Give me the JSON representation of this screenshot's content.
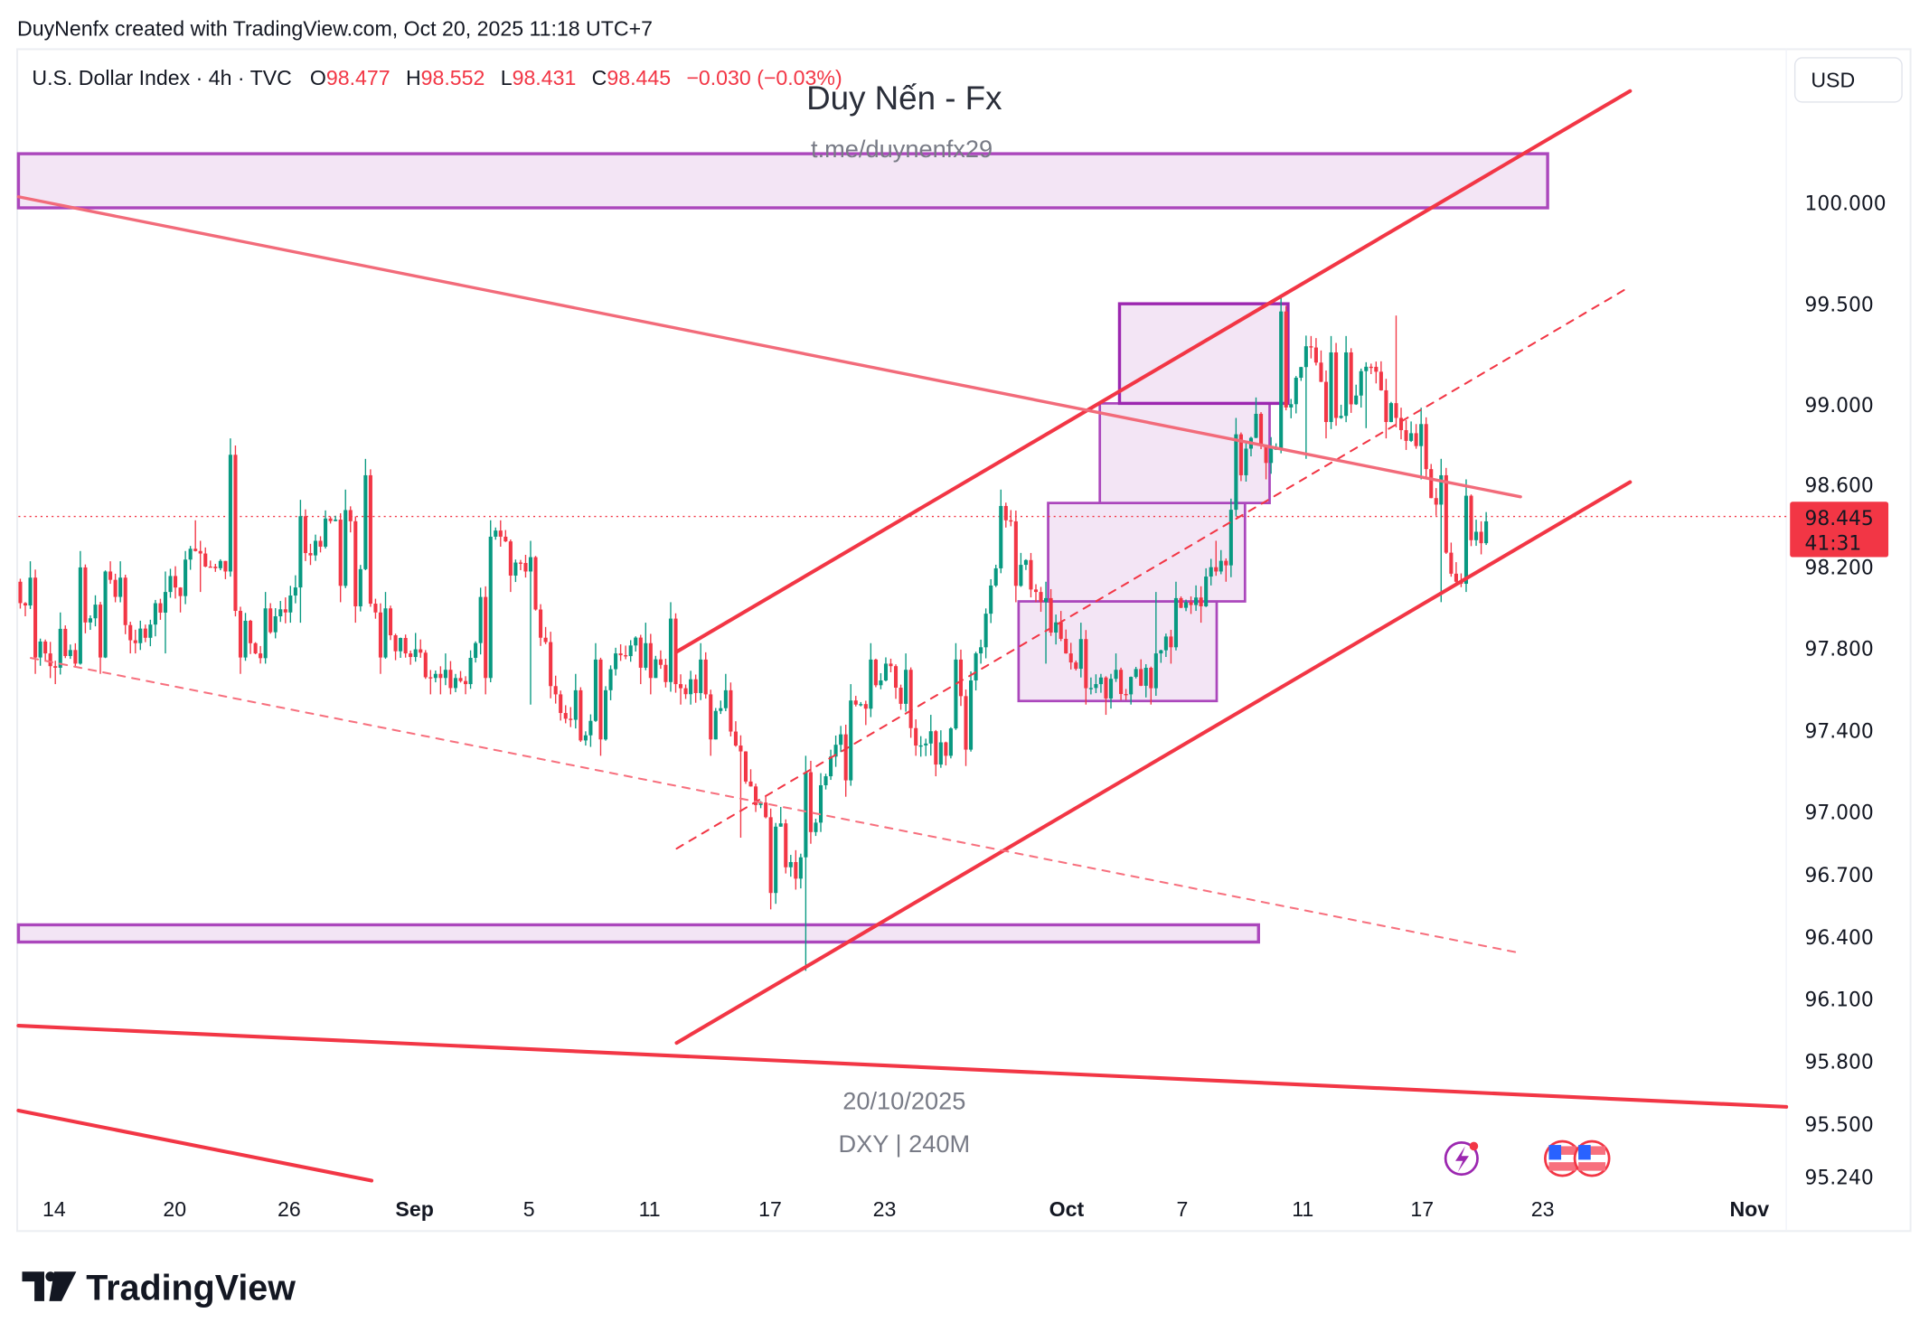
{
  "credit": "DuyNenfx created with TradingView.com, Oct 20, 2025 11:18 UTC+7",
  "legend": {
    "symbol": "U.S. Dollar Index · 4h · TVC",
    "o_label": "O",
    "o": "98.477",
    "h_label": "H",
    "h": "98.552",
    "l_label": "L",
    "l": "98.431",
    "c_label": "C",
    "c": "98.445",
    "change": "−0.030 (−0.03%)"
  },
  "watermark": {
    "title": "Duy Nến - Fx",
    "link": "t.me/duynenfx29",
    "date": "20/10/2025",
    "ticker": "DXY | 240M"
  },
  "currency_button": "USD",
  "last_price": {
    "value": "98.445",
    "countdown": "41:31"
  },
  "footer_logo": "TradingView",
  "colors": {
    "up": "#089981",
    "down": "#f23645",
    "zone_fill": "#f3e5f5",
    "zone_stroke": "#ab47bc",
    "trendline": "#f23645"
  },
  "icons": [
    "lightning-event-icon",
    "us-flag-icon",
    "us-flag-icon"
  ],
  "chart_data": {
    "type": "candlestick",
    "timeframe": "4h",
    "y_axis": {
      "ticks": [
        "100.000",
        "99.500",
        "99.000",
        "98.600",
        "98.200",
        "97.800",
        "97.400",
        "97.000",
        "96.700",
        "96.400",
        "96.100",
        "95.800",
        "95.500",
        "95.240"
      ],
      "range": [
        95.24,
        100.5
      ]
    },
    "x_axis": {
      "ticks": [
        "14",
        "20",
        "26",
        "Sep",
        "5",
        "11",
        "17",
        "23",
        "Oct",
        "7",
        "11",
        "17",
        "23",
        "Nov"
      ]
    },
    "daily_ohlc": [
      [
        "2025-08-13",
        98.15,
        98.25,
        97.7,
        97.8
      ],
      [
        "2025-08-14",
        97.8,
        98.0,
        97.65,
        97.75
      ],
      [
        "2025-08-15",
        97.75,
        98.3,
        97.7,
        98.2
      ],
      [
        "2025-08-18",
        98.2,
        98.25,
        97.8,
        97.85
      ],
      [
        "2025-08-19",
        97.85,
        98.2,
        97.8,
        98.1
      ],
      [
        "2025-08-20",
        98.1,
        98.45,
        98.0,
        98.3
      ],
      [
        "2025-08-21",
        98.3,
        98.35,
        98.1,
        98.2
      ],
      [
        "2025-08-22",
        98.2,
        98.85,
        97.7,
        97.8
      ],
      [
        "2025-08-25",
        97.8,
        98.1,
        97.75,
        98.0
      ],
      [
        "2025-08-26",
        98.0,
        98.55,
        97.95,
        98.35
      ],
      [
        "2025-08-27",
        98.35,
        98.6,
        98.05,
        98.5
      ],
      [
        "2025-08-28",
        98.5,
        98.75,
        97.95,
        98.0
      ],
      [
        "2025-08-29",
        98.0,
        98.1,
        97.7,
        97.8
      ],
      [
        "2025-09-01",
        97.8,
        97.9,
        97.6,
        97.7
      ],
      [
        "2025-09-02",
        97.7,
        97.8,
        97.6,
        97.65
      ],
      [
        "2025-09-03",
        97.65,
        98.45,
        97.6,
        98.4
      ],
      [
        "2025-09-04",
        98.4,
        98.45,
        98.1,
        98.2
      ],
      [
        "2025-09-05",
        98.2,
        98.35,
        97.55,
        97.6
      ],
      [
        "2025-09-08",
        97.6,
        97.7,
        97.35,
        97.4
      ],
      [
        "2025-09-09",
        97.4,
        97.85,
        97.3,
        97.8
      ],
      [
        "2025-09-10",
        97.8,
        97.95,
        97.65,
        97.85
      ],
      [
        "2025-09-11",
        97.85,
        98.05,
        97.6,
        97.65
      ],
      [
        "2025-09-12",
        97.65,
        97.85,
        97.55,
        97.6
      ],
      [
        "2025-09-15",
        97.6,
        97.7,
        97.3,
        97.35
      ],
      [
        "2025-09-16",
        97.35,
        97.4,
        96.9,
        97.0
      ],
      [
        "2025-09-17",
        97.0,
        97.05,
        96.55,
        96.7
      ],
      [
        "2025-09-18",
        96.7,
        97.3,
        96.25,
        97.2
      ],
      [
        "2025-09-19",
        97.2,
        97.65,
        97.1,
        97.55
      ],
      [
        "2025-09-22",
        97.55,
        97.85,
        97.45,
        97.75
      ],
      [
        "2025-09-23",
        97.75,
        97.8,
        97.3,
        97.35
      ],
      [
        "2025-09-24",
        97.35,
        97.5,
        97.2,
        97.3
      ],
      [
        "2025-09-25",
        97.3,
        97.85,
        97.25,
        97.8
      ],
      [
        "2025-09-26",
        97.8,
        98.6,
        97.75,
        98.45
      ],
      [
        "2025-09-29",
        98.45,
        98.5,
        98.05,
        98.1
      ],
      [
        "2025-09-30",
        98.1,
        98.15,
        97.75,
        97.8
      ],
      [
        "2025-10-01",
        97.8,
        97.95,
        97.55,
        97.65
      ],
      [
        "2025-10-02",
        97.65,
        97.8,
        97.5,
        97.6
      ],
      [
        "2025-10-03",
        97.6,
        98.1,
        97.55,
        97.8
      ],
      [
        "2025-10-06",
        97.8,
        98.15,
        97.75,
        98.05
      ],
      [
        "2025-10-07",
        98.05,
        98.35,
        97.95,
        98.2
      ],
      [
        "2025-10-08",
        98.2,
        98.95,
        98.15,
        98.8
      ],
      [
        "2025-10-09",
        98.8,
        99.05,
        98.65,
        98.8
      ],
      [
        "2025-10-10",
        98.8,
        99.55,
        98.75,
        99.3
      ],
      [
        "2025-10-13",
        99.3,
        99.35,
        98.85,
        98.95
      ],
      [
        "2025-10-14",
        98.95,
        99.35,
        98.9,
        99.2
      ],
      [
        "2025-10-15",
        99.2,
        99.45,
        98.85,
        98.95
      ],
      [
        "2025-10-16",
        98.95,
        99.0,
        98.65,
        98.7
      ],
      [
        "2025-10-17",
        98.7,
        98.75,
        98.05,
        98.15
      ],
      [
        "2025-10-20",
        98.15,
        98.65,
        98.1,
        98.445
      ]
    ],
    "last_price": 98.445,
    "drawings": {
      "supply_zone": [
        99.98,
        100.25
      ],
      "demand_zone": [
        96.39,
        96.47
      ],
      "boxes": [
        [
          99.0,
          99.5
        ],
        [
          98.5,
          99.0
        ],
        [
          98.0,
          98.5
        ],
        [
          97.5,
          98.0
        ]
      ]
    }
  }
}
